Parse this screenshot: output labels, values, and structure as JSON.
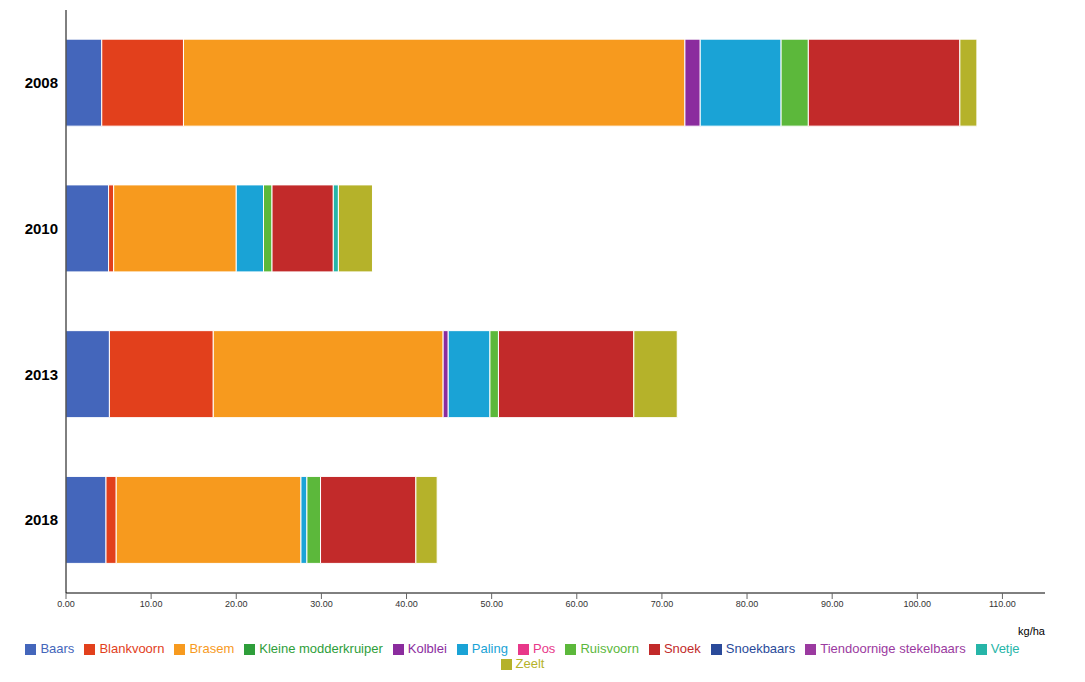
{
  "chart_data": {
    "type": "bar",
    "orientation": "horizontal",
    "stacked": true,
    "grid": false,
    "legend": "bottom",
    "x_label": "kg/ha",
    "categories": [
      "2008",
      "2010",
      "2013",
      "2018"
    ],
    "xlim": [
      0,
      115
    ],
    "xticks": [
      {
        "value": 0,
        "label": "0.00"
      },
      {
        "value": 10,
        "label": "10.00"
      },
      {
        "value": 20,
        "label": "20.00"
      },
      {
        "value": 30,
        "label": "30.00"
      },
      {
        "value": 40,
        "label": "40.00"
      },
      {
        "value": 50,
        "label": "50.00"
      },
      {
        "value": 60,
        "label": "60.00"
      },
      {
        "value": 70,
        "label": "70.00"
      },
      {
        "value": 80,
        "label": "80.00"
      },
      {
        "value": 90,
        "label": "90.00"
      },
      {
        "value": 100,
        "label": "100.00"
      },
      {
        "value": 110,
        "label": "110.00"
      }
    ],
    "series": [
      {
        "name": "Baars",
        "color": "#4466bb",
        "values": [
          4.2,
          5.0,
          5.1,
          4.7
        ]
      },
      {
        "name": "Blankvoorn",
        "color": "#e2401c",
        "values": [
          9.6,
          0.6,
          12.2,
          1.2
        ]
      },
      {
        "name": "Brasem",
        "color": "#f79a1e",
        "values": [
          58.9,
          14.4,
          27.0,
          21.7
        ]
      },
      {
        "name": "Kleine modderkruiper",
        "color": "#2e9e3a",
        "values": [
          0,
          0,
          0,
          0
        ]
      },
      {
        "name": "Kolblei",
        "color": "#8b2c9e",
        "values": [
          1.8,
          0,
          0.6,
          0
        ]
      },
      {
        "name": "Paling",
        "color": "#1aa3d6",
        "values": [
          9.5,
          3.2,
          4.9,
          0.7
        ]
      },
      {
        "name": "Pos",
        "color": "#e8388a",
        "values": [
          0,
          0,
          0,
          0
        ]
      },
      {
        "name": "Ruisvoorn",
        "color": "#5cb83b",
        "values": [
          3.2,
          1.0,
          1.0,
          1.6
        ]
      },
      {
        "name": "Snoek",
        "color": "#c22a2a",
        "values": [
          17.8,
          7.2,
          15.9,
          11.2
        ]
      },
      {
        "name": "Snoekbaars",
        "color": "#2a4a9a",
        "values": [
          0,
          0,
          0,
          0
        ]
      },
      {
        "name": "Tiendoornige stekelbaars",
        "color": "#9b3aa0",
        "values": [
          0,
          0,
          0,
          0
        ]
      },
      {
        "name": "Vetje",
        "color": "#26b5a8",
        "values": [
          0,
          0.6,
          0,
          0
        ]
      },
      {
        "name": "Zeelt",
        "color": "#b5b22a",
        "values": [
          2.0,
          4.0,
          5.1,
          2.5
        ]
      }
    ]
  }
}
